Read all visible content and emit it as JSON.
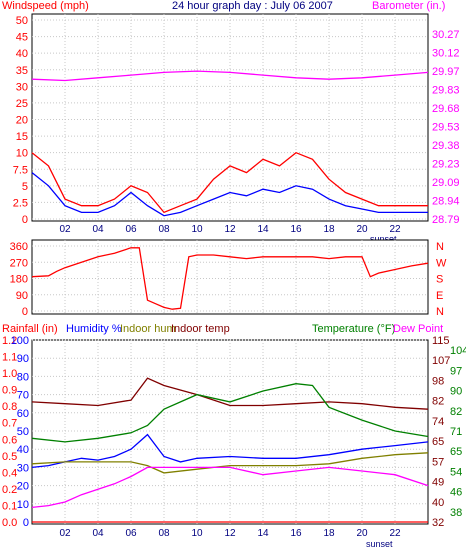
{
  "chart_data": [
    {
      "type": "line",
      "title": "24 hour graph day : July 06 2007",
      "left_axis_label": "Windspeed (mph)",
      "right_axis_label": "Barometer (in.)",
      "x_ticks": [
        "02",
        "04",
        "06",
        "08",
        "10",
        "12",
        "14",
        "16",
        "18",
        "20",
        "22"
      ],
      "x_marker": "sunset",
      "left_ticks": [
        "0",
        "2.5",
        "5",
        "7.5",
        "10",
        "15",
        "20",
        "25",
        "30",
        "35",
        "40",
        "45",
        "50"
      ],
      "left_tick_values": [
        0,
        2.5,
        5,
        7.5,
        10,
        15,
        20,
        25,
        30,
        35,
        40,
        45,
        50
      ],
      "right_ticks": [
        "28.79",
        "28.94",
        "29.09",
        "29.23",
        "29.38",
        "29.53",
        "29.68",
        "29.83",
        "29.97",
        "30.12",
        "30.27"
      ],
      "ylim_left": [
        0,
        50
      ],
      "ylim_right": [
        28.79,
        30.27
      ],
      "grid": true,
      "series": [
        {
          "name": "Windspeed (mph)",
          "color": "#ff0000",
          "x": [
            0,
            1,
            2,
            3,
            4,
            5,
            6,
            7,
            8,
            9,
            10,
            11,
            12,
            13,
            14,
            15,
            16,
            17,
            18,
            19,
            20,
            21,
            22,
            23,
            24
          ],
          "values": [
            10,
            8,
            3,
            2,
            2,
            3,
            5,
            4,
            1,
            2,
            3,
            6,
            8,
            7,
            9,
            8,
            10,
            9,
            6,
            4,
            3,
            2,
            2,
            2,
            2
          ]
        },
        {
          "name": "Gust",
          "color": "#0000ff",
          "x": [
            0,
            1,
            2,
            3,
            4,
            5,
            6,
            7,
            8,
            9,
            10,
            11,
            12,
            13,
            14,
            15,
            16,
            17,
            18,
            19,
            20,
            21,
            22,
            23,
            24
          ],
          "values": [
            7,
            5,
            2,
            1,
            1,
            2,
            4,
            2,
            0.5,
            1,
            2,
            3,
            4,
            3.5,
            4.5,
            4,
            5,
            4.5,
            3,
            2,
            1.5,
            1,
            1,
            1,
            1
          ]
        },
        {
          "name": "Barometer (in.)",
          "color": "#ff00ff",
          "x": [
            0,
            2,
            4,
            6,
            8,
            10,
            12,
            14,
            16,
            18,
            20,
            22,
            24
          ],
          "values": [
            29.83,
            29.82,
            29.84,
            29.86,
            29.88,
            29.89,
            29.88,
            29.86,
            29.84,
            29.83,
            29.84,
            29.86,
            29.88
          ]
        }
      ]
    },
    {
      "type": "line",
      "title": "",
      "left_ticks": [
        "360",
        "270",
        "180",
        "90",
        "0"
      ],
      "left_tick_values": [
        360,
        270,
        180,
        90,
        0
      ],
      "right_ticks": [
        "N",
        "W",
        "S",
        "E",
        "N"
      ],
      "x_ticks": [
        "02",
        "04",
        "06",
        "08",
        "10",
        "12",
        "14",
        "16",
        "18",
        "20",
        "22"
      ],
      "ylim": [
        0,
        360
      ],
      "grid": true,
      "series": [
        {
          "name": "Wind direction",
          "color": "#ff0000",
          "x": [
            0,
            1,
            1.5,
            2,
            3,
            4,
            5,
            6,
            6.5,
            7,
            7.5,
            8,
            8.5,
            9,
            9.5,
            10,
            11,
            12,
            13,
            14,
            15,
            16,
            17,
            18,
            19,
            20,
            20.5,
            21,
            22,
            23,
            24
          ],
          "values": [
            190,
            195,
            220,
            240,
            270,
            300,
            320,
            350,
            350,
            60,
            40,
            20,
            10,
            15,
            300,
            310,
            310,
            300,
            290,
            300,
            300,
            300,
            300,
            290,
            300,
            300,
            190,
            210,
            230,
            250,
            265
          ]
        }
      ]
    },
    {
      "type": "line",
      "title": "",
      "labels": {
        "rainfall": "Rainfall (in)",
        "humidity": "Humidity %",
        "indoor_hum": "Indoor hum",
        "indoor_temp": "Indoor temp",
        "temperature": "Temperature (°F)",
        "dew_point": "Dew Point"
      },
      "x_ticks": [
        "02",
        "04",
        "06",
        "08",
        "10",
        "12",
        "14",
        "16",
        "18",
        "20",
        "22"
      ],
      "x_marker": "sunset",
      "rain_ticks": [
        "0.0",
        "0.1",
        "0.2",
        "0.4",
        "0.5",
        "0.6",
        "0.7",
        "0.8",
        "0.9",
        "1.0",
        "1.1",
        "1.2"
      ],
      "hum_ticks": [
        "0",
        "10",
        "20",
        "30",
        "40",
        "50",
        "60",
        "70",
        "80",
        "90",
        "100"
      ],
      "temp_ticks": [
        "32",
        "38",
        "40",
        "46",
        "49",
        "54",
        "57",
        "65",
        "65",
        "71",
        "74",
        "82",
        "82",
        "90",
        "98",
        "97",
        "107",
        "104",
        "115"
      ],
      "ylim_humidity": [
        0,
        100
      ],
      "grid": true,
      "series": [
        {
          "name": "Indoor temp",
          "color": "#800000",
          "x": [
            0,
            2,
            4,
            6,
            7,
            8,
            10,
            12,
            14,
            16,
            18,
            20,
            22,
            24
          ],
          "values": [
            66,
            65,
            64,
            67,
            79,
            75,
            70,
            64,
            64,
            65,
            66,
            65,
            63,
            62
          ]
        },
        {
          "name": "Temperature (°F)",
          "color": "#008000",
          "x": [
            0,
            2,
            4,
            6,
            7,
            8,
            10,
            12,
            14,
            16,
            17,
            18,
            20,
            22,
            24
          ],
          "values": [
            46,
            44,
            46,
            49,
            53,
            62,
            70,
            66,
            72,
            76,
            75,
            63,
            56,
            50,
            47
          ]
        },
        {
          "name": "Humidity %",
          "color": "#0000ff",
          "x": [
            0,
            1,
            2,
            3,
            4,
            5,
            6,
            7,
            8,
            9,
            10,
            12,
            14,
            16,
            18,
            20,
            22,
            24
          ],
          "values": [
            30,
            31,
            33,
            35,
            34,
            36,
            40,
            48,
            36,
            33,
            35,
            36,
            35,
            35,
            37,
            40,
            42,
            44
          ]
        },
        {
          "name": "Indoor hum",
          "color": "#808000",
          "x": [
            0,
            2,
            4,
            6,
            7,
            8,
            10,
            12,
            14,
            16,
            18,
            20,
            22,
            24
          ],
          "values": [
            32,
            33,
            33,
            33,
            31,
            27,
            29,
            31,
            31,
            31,
            32,
            35,
            37,
            38
          ]
        },
        {
          "name": "Dew Point",
          "color": "#ff00ff",
          "x": [
            0,
            1,
            2,
            3,
            4,
            5,
            6,
            7,
            8,
            10,
            12,
            14,
            16,
            18,
            20,
            22,
            24
          ],
          "values": [
            8,
            9,
            11,
            15,
            18,
            21,
            25,
            30,
            30,
            30,
            30,
            26,
            28,
            30,
            28,
            26,
            20
          ]
        },
        {
          "name": "Rainfall (in)",
          "color": "#ff0000",
          "x": [
            0,
            24
          ],
          "values": [
            0,
            0
          ]
        }
      ]
    }
  ]
}
